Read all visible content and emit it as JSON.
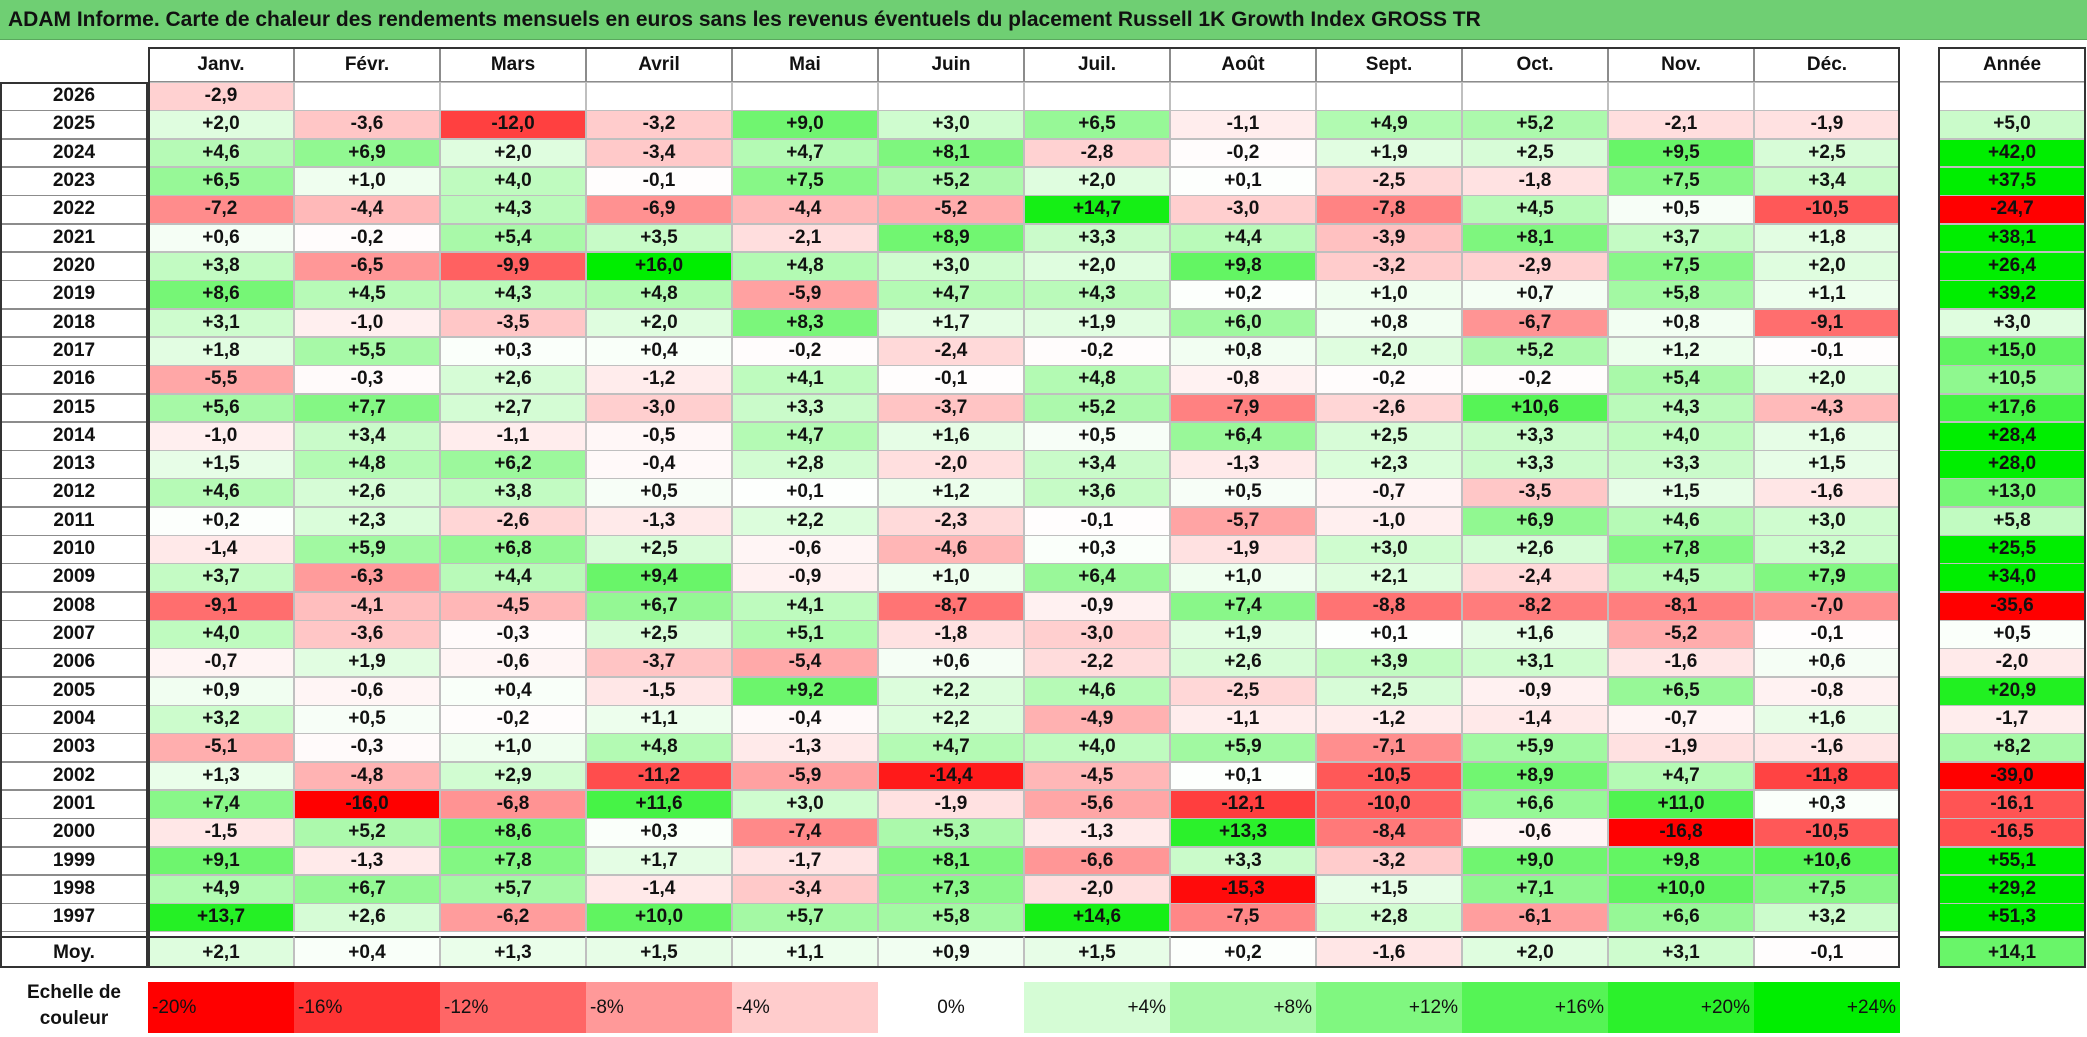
{
  "title": "ADAM Informe. Carte de chaleur des rendements mensuels en euros sans les revenus éventuels du placement Russell 1K Growth Index GROSS TR",
  "chart_data": {
    "type": "heatmap",
    "title": "ADAM Informe. Carte de chaleur des rendements mensuels en euros sans les revenus éventuels du placement Russell 1K Growth Index GROSS TR",
    "months": [
      "Janv.",
      "Févr.",
      "Mars",
      "Avril",
      "Mai",
      "Juin",
      "Juil.",
      "Août",
      "Sept.",
      "Oct.",
      "Nov.",
      "Déc."
    ],
    "year_header": "Année",
    "rows": [
      {
        "year": "2026",
        "values": [
          "-2,9",
          "",
          "",
          "",
          "",
          "",
          "",
          "",
          "",
          "",
          "",
          ""
        ],
        "annual": ""
      },
      {
        "year": "2025",
        "values": [
          "+2,0",
          "-3,6",
          "-12,0",
          "-3,2",
          "+9,0",
          "+3,0",
          "+6,5",
          "-1,1",
          "+4,9",
          "+5,2",
          "-2,1",
          "-1,9"
        ],
        "annual": "+5,0"
      },
      {
        "year": "2024",
        "values": [
          "+4,6",
          "+6,9",
          "+2,0",
          "-3,4",
          "+4,7",
          "+8,1",
          "-2,8",
          "-0,2",
          "+1,9",
          "+2,5",
          "+9,5",
          "+2,5"
        ],
        "annual": "+42,0"
      },
      {
        "year": "2023",
        "values": [
          "+6,5",
          "+1,0",
          "+4,0",
          "-0,1",
          "+7,5",
          "+5,2",
          "+2,0",
          "+0,1",
          "-2,5",
          "-1,8",
          "+7,5",
          "+3,4"
        ],
        "annual": "+37,5"
      },
      {
        "year": "2022",
        "values": [
          "-7,2",
          "-4,4",
          "+4,3",
          "-6,9",
          "-4,4",
          "-5,2",
          "+14,7",
          "-3,0",
          "-7,8",
          "+4,5",
          "+0,5",
          "-10,5"
        ],
        "annual": "-24,7"
      },
      {
        "year": "2021",
        "values": [
          "+0,6",
          "-0,2",
          "+5,4",
          "+3,5",
          "-2,1",
          "+8,9",
          "+3,3",
          "+4,4",
          "-3,9",
          "+8,1",
          "+3,7",
          "+1,8"
        ],
        "annual": "+38,1"
      },
      {
        "year": "2020",
        "values": [
          "+3,8",
          "-6,5",
          "-9,9",
          "+16,0",
          "+4,8",
          "+3,0",
          "+2,0",
          "+9,8",
          "-3,2",
          "-2,9",
          "+7,5",
          "+2,0"
        ],
        "annual": "+26,4"
      },
      {
        "year": "2019",
        "values": [
          "+8,6",
          "+4,5",
          "+4,3",
          "+4,8",
          "-5,9",
          "+4,7",
          "+4,3",
          "+0,2",
          "+1,0",
          "+0,7",
          "+5,8",
          "+1,1"
        ],
        "annual": "+39,2"
      },
      {
        "year": "2018",
        "values": [
          "+3,1",
          "-1,0",
          "-3,5",
          "+2,0",
          "+8,3",
          "+1,7",
          "+1,9",
          "+6,0",
          "+0,8",
          "-6,7",
          "+0,8",
          "-9,1"
        ],
        "annual": "+3,0"
      },
      {
        "year": "2017",
        "values": [
          "+1,8",
          "+5,5",
          "+0,3",
          "+0,4",
          "-0,2",
          "-2,4",
          "-0,2",
          "+0,8",
          "+2,0",
          "+5,2",
          "+1,2",
          "-0,1"
        ],
        "annual": "+15,0"
      },
      {
        "year": "2016",
        "values": [
          "-5,5",
          "-0,3",
          "+2,6",
          "-1,2",
          "+4,1",
          "-0,1",
          "+4,8",
          "-0,8",
          "-0,2",
          "-0,2",
          "+5,4",
          "+2,0"
        ],
        "annual": "+10,5"
      },
      {
        "year": "2015",
        "values": [
          "+5,6",
          "+7,7",
          "+2,7",
          "-3,0",
          "+3,3",
          "-3,7",
          "+5,2",
          "-7,9",
          "-2,6",
          "+10,6",
          "+4,3",
          "-4,3"
        ],
        "annual": "+17,6"
      },
      {
        "year": "2014",
        "values": [
          "-1,0",
          "+3,4",
          "-1,1",
          "-0,5",
          "+4,7",
          "+1,6",
          "+0,5",
          "+6,4",
          "+2,5",
          "+3,3",
          "+4,0",
          "+1,6"
        ],
        "annual": "+28,4"
      },
      {
        "year": "2013",
        "values": [
          "+1,5",
          "+4,8",
          "+6,2",
          "-0,4",
          "+2,8",
          "-2,0",
          "+3,4",
          "-1,3",
          "+2,3",
          "+3,3",
          "+3,3",
          "+1,5"
        ],
        "annual": "+28,0"
      },
      {
        "year": "2012",
        "values": [
          "+4,6",
          "+2,6",
          "+3,8",
          "+0,5",
          "+0,1",
          "+1,2",
          "+3,6",
          "+0,5",
          "-0,7",
          "-3,5",
          "+1,5",
          "-1,6"
        ],
        "annual": "+13,0"
      },
      {
        "year": "2011",
        "values": [
          "+0,2",
          "+2,3",
          "-2,6",
          "-1,3",
          "+2,2",
          "-2,3",
          "-0,1",
          "-5,7",
          "-1,0",
          "+6,9",
          "+4,6",
          "+3,0"
        ],
        "annual": "+5,8"
      },
      {
        "year": "2010",
        "values": [
          "-1,4",
          "+5,9",
          "+6,8",
          "+2,5",
          "-0,6",
          "-4,6",
          "+0,3",
          "-1,9",
          "+3,0",
          "+2,6",
          "+7,8",
          "+3,2"
        ],
        "annual": "+25,5"
      },
      {
        "year": "2009",
        "values": [
          "+3,7",
          "-6,3",
          "+4,4",
          "+9,4",
          "-0,9",
          "+1,0",
          "+6,4",
          "+1,0",
          "+2,1",
          "-2,4",
          "+4,5",
          "+7,9"
        ],
        "annual": "+34,0"
      },
      {
        "year": "2008",
        "values": [
          "-9,1",
          "-4,1",
          "-4,5",
          "+6,7",
          "+4,1",
          "-8,7",
          "-0,9",
          "+7,4",
          "-8,8",
          "-8,2",
          "-8,1",
          "-7,0"
        ],
        "annual": "-35,6"
      },
      {
        "year": "2007",
        "values": [
          "+4,0",
          "-3,6",
          "-0,3",
          "+2,5",
          "+5,1",
          "-1,8",
          "-3,0",
          "+1,9",
          "+0,1",
          "+1,6",
          "-5,2",
          "-0,1"
        ],
        "annual": "+0,5"
      },
      {
        "year": "2006",
        "values": [
          "-0,7",
          "+1,9",
          "-0,6",
          "-3,7",
          "-5,4",
          "+0,6",
          "-2,2",
          "+2,6",
          "+3,9",
          "+3,1",
          "-1,6",
          "+0,6"
        ],
        "annual": "-2,0"
      },
      {
        "year": "2005",
        "values": [
          "+0,9",
          "-0,6",
          "+0,4",
          "-1,5",
          "+9,2",
          "+2,2",
          "+4,6",
          "-2,5",
          "+2,5",
          "-0,9",
          "+6,5",
          "-0,8"
        ],
        "annual": "+20,9"
      },
      {
        "year": "2004",
        "values": [
          "+3,2",
          "+0,5",
          "-0,2",
          "+1,1",
          "-0,4",
          "+2,2",
          "-4,9",
          "-1,1",
          "-1,2",
          "-1,4",
          "-0,7",
          "+1,6"
        ],
        "annual": "-1,7"
      },
      {
        "year": "2003",
        "values": [
          "-5,1",
          "-0,3",
          "+1,0",
          "+4,8",
          "-1,3",
          "+4,7",
          "+4,0",
          "+5,9",
          "-7,1",
          "+5,9",
          "-1,9",
          "-1,6"
        ],
        "annual": "+8,2"
      },
      {
        "year": "2002",
        "values": [
          "+1,3",
          "-4,8",
          "+2,9",
          "-11,2",
          "-5,9",
          "-14,4",
          "-4,5",
          "+0,1",
          "-10,5",
          "+8,9",
          "+4,7",
          "-11,8"
        ],
        "annual": "-39,0"
      },
      {
        "year": "2001",
        "values": [
          "+7,4",
          "-16,0",
          "-6,8",
          "+11,6",
          "+3,0",
          "-1,9",
          "-5,6",
          "-12,1",
          "-10,0",
          "+6,6",
          "+11,0",
          "+0,3"
        ],
        "annual": "-16,1"
      },
      {
        "year": "2000",
        "values": [
          "-1,5",
          "+5,2",
          "+8,6",
          "+0,3",
          "-7,4",
          "+5,3",
          "-1,3",
          "+13,3",
          "-8,4",
          "-0,6",
          "-16,8",
          "-10,5"
        ],
        "annual": "-16,5"
      },
      {
        "year": "1999",
        "values": [
          "+9,1",
          "-1,3",
          "+7,8",
          "+1,7",
          "-1,7",
          "+8,1",
          "-6,6",
          "+3,3",
          "-3,2",
          "+9,0",
          "+9,8",
          "+10,6"
        ],
        "annual": "+55,1"
      },
      {
        "year": "1998",
        "values": [
          "+4,9",
          "+6,7",
          "+5,7",
          "-1,4",
          "-3,4",
          "+7,3",
          "-2,0",
          "-15,3",
          "+1,5",
          "+7,1",
          "+10,0",
          "+7,5"
        ],
        "annual": "+29,2"
      },
      {
        "year": "1997",
        "values": [
          "+13,7",
          "+2,6",
          "-6,2",
          "+10,0",
          "+5,7",
          "+5,8",
          "+14,6",
          "-7,5",
          "+2,8",
          "-6,1",
          "+6,6",
          "+3,2"
        ],
        "annual": "+51,3"
      }
    ],
    "average": {
      "label": "Moy.",
      "values": [
        "+2,1",
        "+0,4",
        "+1,3",
        "+1,5",
        "+1,1",
        "+0,9",
        "+1,5",
        "+0,2",
        "-1,6",
        "+2,0",
        "+3,1",
        "-0,1"
      ],
      "annual": "+14,1"
    },
    "scale": {
      "label_line1": "Echelle de",
      "label_line2": "couleur",
      "stops": [
        "-20%",
        "-16%",
        "-12%",
        "-8%",
        "-4%",
        "0%",
        "+4%",
        "+8%",
        "+12%",
        "+16%",
        "+20%",
        "+24%"
      ],
      "stop_values": [
        -20,
        -16,
        -12,
        -8,
        -4,
        0,
        4,
        8,
        12,
        16,
        20,
        24
      ]
    },
    "colors": {
      "negative_max": "#ff0000",
      "neutral": "#ffffff",
      "positive_max": "#00ee00",
      "title_bg": "#6fcf73"
    }
  }
}
